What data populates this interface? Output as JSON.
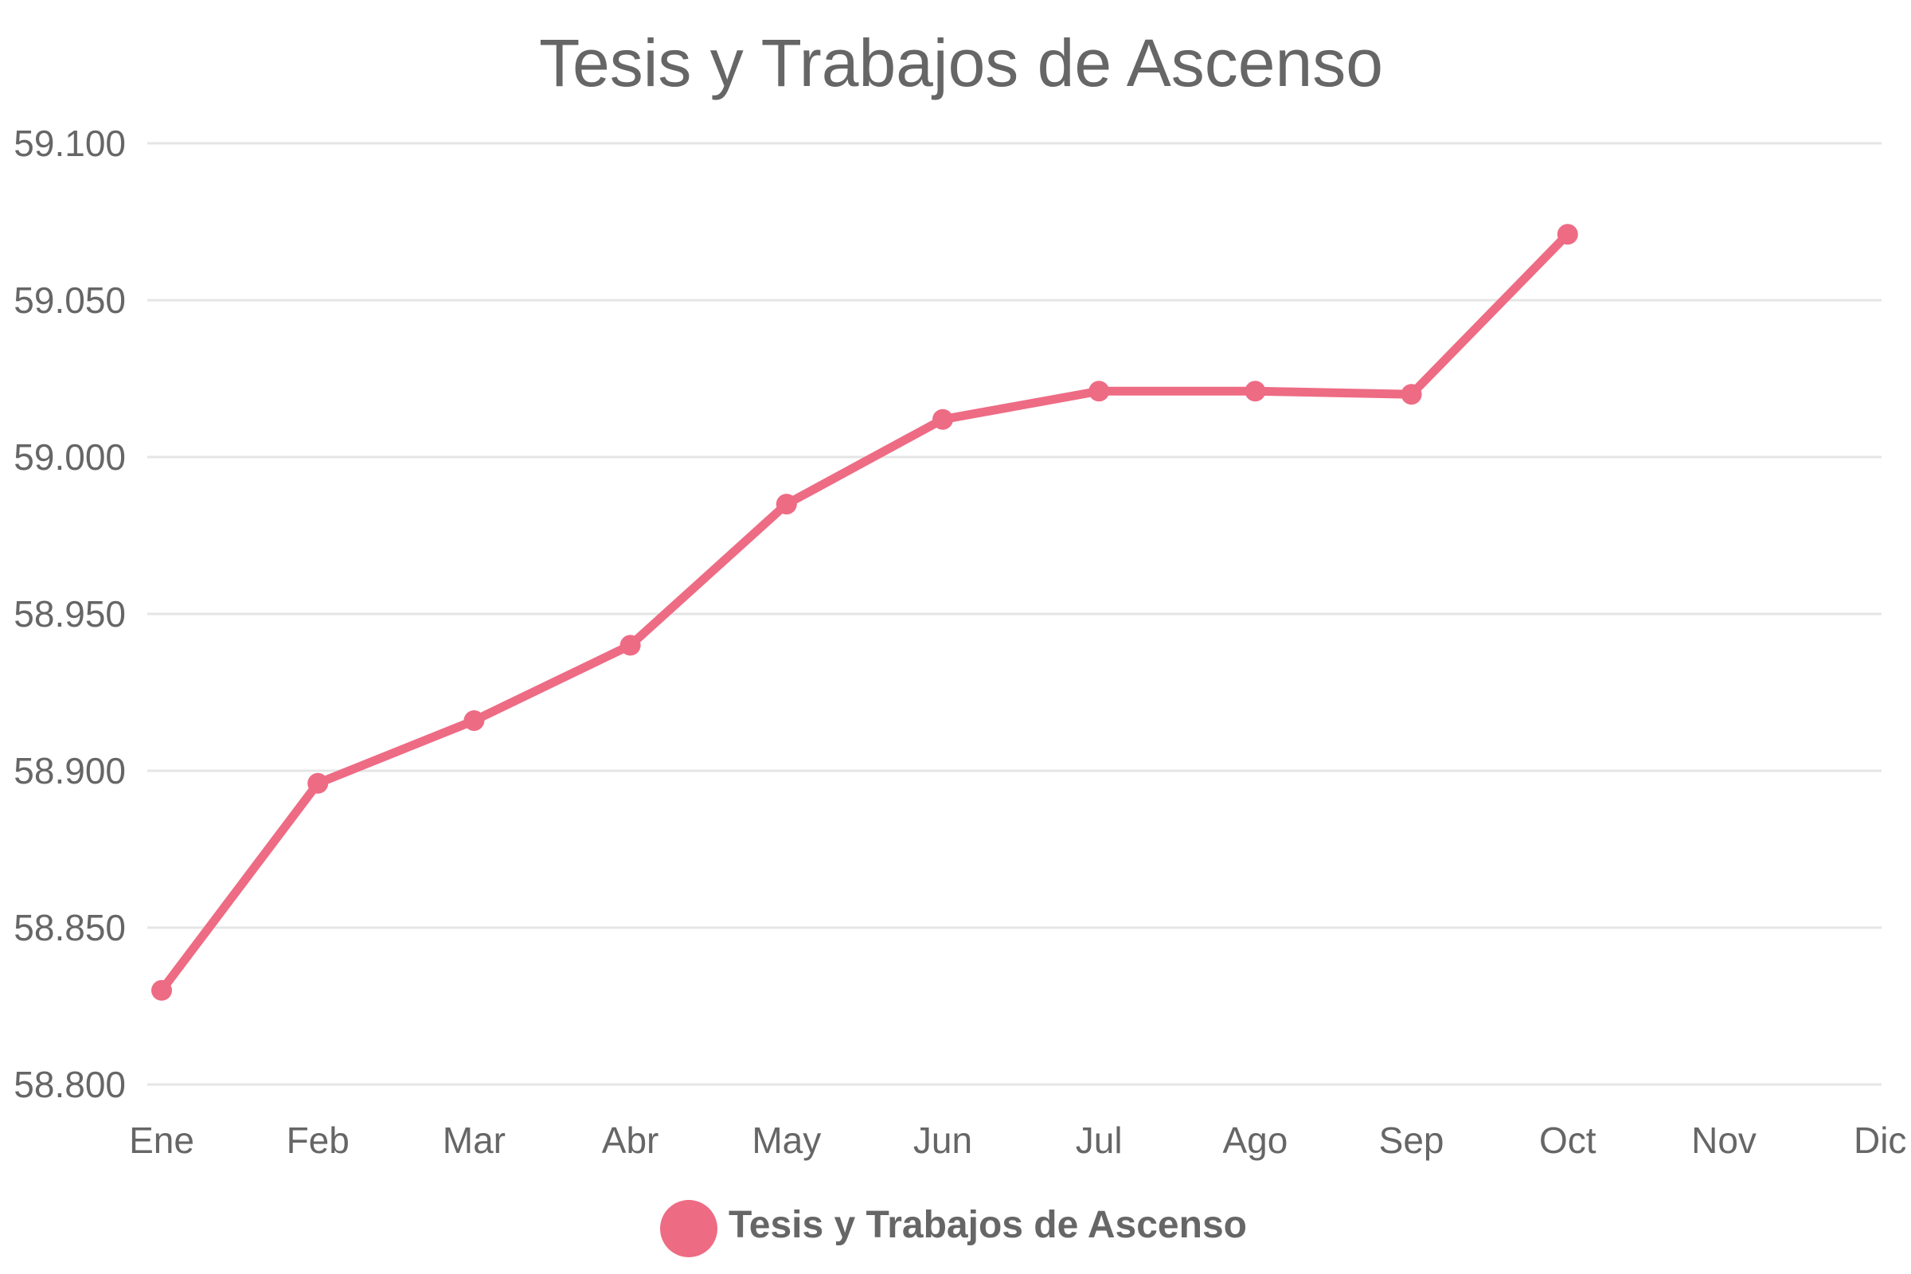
{
  "chart_data": {
    "type": "line",
    "title": "Tesis y Trabajos de Ascenso",
    "categories": [
      "Ene",
      "Feb",
      "Mar",
      "Abr",
      "May",
      "Jun",
      "Jul",
      "Ago",
      "Sep",
      "Oct",
      "Nov",
      "Dic"
    ],
    "series": [
      {
        "name": "Tesis y Trabajos de Ascenso",
        "values": [
          58830,
          58896,
          58916,
          58940,
          58985,
          59012,
          59021,
          59021,
          59020,
          59071,
          null,
          null
        ],
        "color": "#ee6b84"
      }
    ],
    "ylim": [
      58800,
      59100
    ],
    "yticks": [
      {
        "value": 59100,
        "label": "59.100"
      },
      {
        "value": 59050,
        "label": "59.050"
      },
      {
        "value": 59000,
        "label": "59.000"
      },
      {
        "value": 58950,
        "label": "58.950"
      },
      {
        "value": 58900,
        "label": "58.900"
      },
      {
        "value": 58850,
        "label": "58.850"
      },
      {
        "value": 58800,
        "label": "58.800"
      }
    ],
    "grid": true,
    "legend_position": "bottom",
    "colors": {
      "text": "#666666",
      "grid": "#e5e5e5",
      "series": "#ee6b84"
    }
  }
}
